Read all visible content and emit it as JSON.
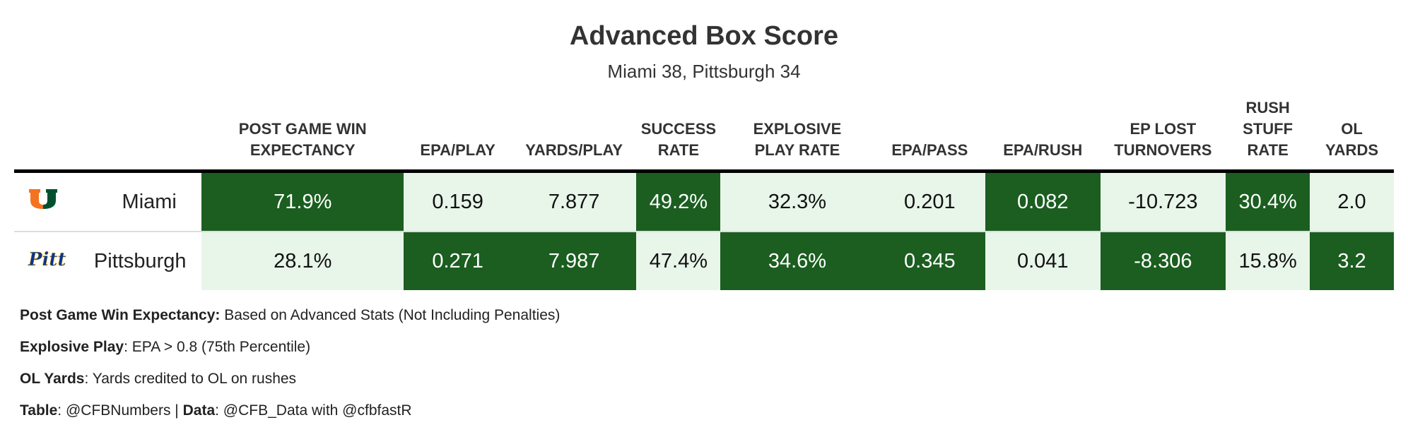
{
  "title": "Advanced Box Score",
  "subtitle": "Miami 38, Pittsburgh 34",
  "chart_data": {
    "type": "table",
    "columns": [
      "POST GAME WIN EXPECTANCY",
      "EPA/PLAY",
      "YARDS/PLAY",
      "SUCCESS RATE",
      "EXPLOSIVE PLAY RATE",
      "EPA/PASS",
      "EPA/RUSH",
      "EP LOST TURNOVERS",
      "RUSH STUFF RATE",
      "OL YARDS"
    ],
    "header_lines": [
      [
        "POST GAME WIN",
        "EXPECTANCY"
      ],
      [
        "EPA/PLAY"
      ],
      [
        "YARDS/PLAY"
      ],
      [
        "SUCCESS",
        "RATE"
      ],
      [
        "EXPLOSIVE",
        "PLAY RATE"
      ],
      [
        "EPA/PASS"
      ],
      [
        "EPA/RUSH"
      ],
      [
        "EP LOST",
        "TURNOVERS"
      ],
      [
        "RUSH",
        "STUFF",
        "RATE"
      ],
      [
        "OL",
        "YARDS"
      ]
    ],
    "rows": [
      {
        "team": "Miami",
        "logo_icon": "miami-u-logo-icon",
        "logo_colors": [
          "#f47321",
          "#005030"
        ],
        "values": [
          "71.9%",
          "0.159",
          "7.877",
          "49.2%",
          "32.3%",
          "0.201",
          "0.082",
          "-10.723",
          "30.4%",
          "2.0"
        ],
        "highlight": [
          true,
          false,
          false,
          true,
          false,
          false,
          true,
          false,
          true,
          false
        ]
      },
      {
        "team": "Pittsburgh",
        "logo_icon": "pitt-script-logo-icon",
        "logo_colors": [
          "#003594",
          "#ffb81c"
        ],
        "values": [
          "28.1%",
          "0.271",
          "7.987",
          "47.4%",
          "34.6%",
          "0.345",
          "0.041",
          "-8.306",
          "15.8%",
          "3.2"
        ],
        "highlight": [
          false,
          true,
          true,
          false,
          true,
          true,
          false,
          true,
          false,
          true
        ]
      }
    ],
    "colors": {
      "dark": "#1b5e20",
      "light": "#e8f5e9"
    }
  },
  "notes": [
    {
      "label": "Post Game Win Expectancy:",
      "text": " Based on Advanced Stats (Not Including Penalties)"
    },
    {
      "label": "Explosive Play",
      "text": ": EPA > 0.8 (75th Percentile)"
    },
    {
      "label": "OL Yards",
      "text": ": Yards credited to OL on rushes"
    }
  ],
  "credits": {
    "table_label": "Table",
    "table_text": ": @CFBNumbers | ",
    "data_label": "Data",
    "data_text": ": @CFB_Data with @cfbfastR"
  }
}
